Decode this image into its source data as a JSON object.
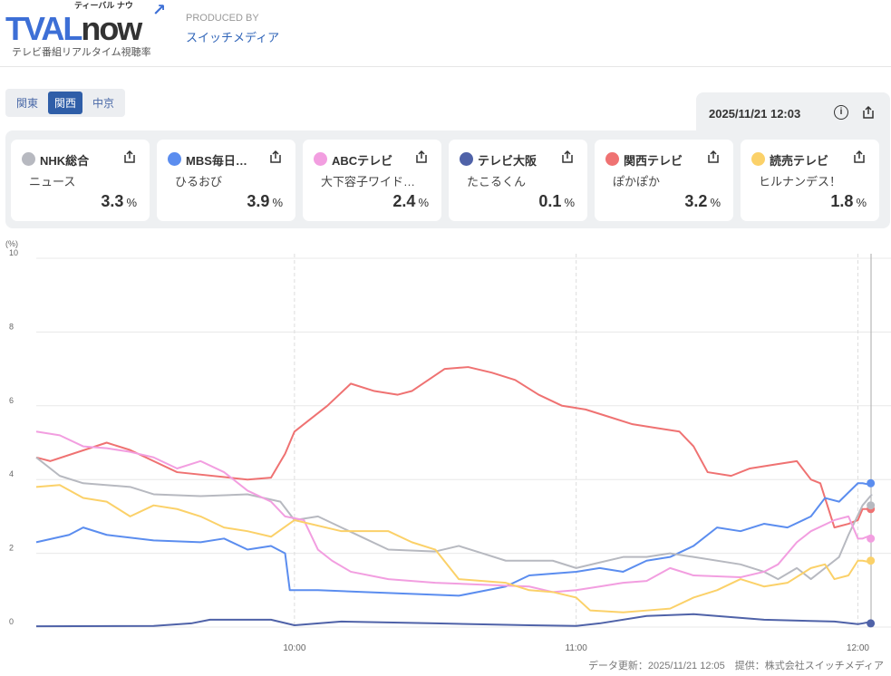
{
  "header": {
    "logo_text": "TVAL",
    "logo_text2": "now",
    "logo_kana": "ティーバル ナウ",
    "logo_sub": "テレビ番組リアルタイム視聴率",
    "produced_by": "PRODUCED BY",
    "producer": "スイッチメディア"
  },
  "regions": [
    {
      "label": "関東",
      "active": false
    },
    {
      "label": "関西",
      "active": true
    },
    {
      "label": "中京",
      "active": false
    }
  ],
  "timestamp": "2025/11/21 12:03",
  "channels": [
    {
      "name": "NHK総合",
      "program": "ニュース",
      "rating": "3.3",
      "unit": "%",
      "color": "#b7b9c0"
    },
    {
      "name": "MBS毎日…",
      "program": "ひるおび",
      "rating": "3.9",
      "unit": "%",
      "color": "#5b8def"
    },
    {
      "name": "ABCテレビ",
      "program": "大下容子ワイド…",
      "rating": "2.4",
      "unit": "%",
      "color": "#f29ee0"
    },
    {
      "name": "テレビ大阪",
      "program": "たこるくん",
      "rating": "0.1",
      "unit": "%",
      "color": "#4f62a8"
    },
    {
      "name": "関西テレビ",
      "program": "ぽかぽか",
      "rating": "3.2",
      "unit": "%",
      "color": "#ef7272"
    },
    {
      "name": "読売テレビ",
      "program": "ヒルナンデス！",
      "rating": "1.8",
      "unit": "%",
      "color": "#fbd169"
    }
  ],
  "chart_data": {
    "type": "line",
    "ylabel": "(%)",
    "ylim": [
      0,
      10
    ],
    "yticks": [
      "0",
      "2",
      "4",
      "6",
      "8",
      "10"
    ],
    "xticks": [
      {
        "label": "10:00",
        "t": "10:00"
      },
      {
        "label": "11:00",
        "t": "11:00"
      },
      {
        "label": "12:00",
        "t": "12:00"
      }
    ],
    "xrange": [
      "9:05",
      "12:03"
    ],
    "series": [
      {
        "name": "関西テレビ",
        "color": "#ef7272",
        "points": [
          [
            "9:05",
            4.6
          ],
          [
            "9:08",
            4.5
          ],
          [
            "9:20",
            5.0
          ],
          [
            "9:25",
            4.8
          ],
          [
            "9:35",
            4.2
          ],
          [
            "9:50",
            4.0
          ],
          [
            "9:55",
            4.05
          ],
          [
            "9:58",
            4.7
          ],
          [
            "10:00",
            5.3
          ],
          [
            "10:03",
            5.6
          ],
          [
            "10:07",
            6.0
          ],
          [
            "10:12",
            6.6
          ],
          [
            "10:17",
            6.4
          ],
          [
            "10:22",
            6.3
          ],
          [
            "10:25",
            6.4
          ],
          [
            "10:32",
            7.0
          ],
          [
            "10:37",
            7.05
          ],
          [
            "10:42",
            6.9
          ],
          [
            "10:47",
            6.7
          ],
          [
            "10:52",
            6.3
          ],
          [
            "10:57",
            6.0
          ],
          [
            "11:02",
            5.9
          ],
          [
            "11:07",
            5.7
          ],
          [
            "11:12",
            5.5
          ],
          [
            "11:17",
            5.4
          ],
          [
            "11:22",
            5.3
          ],
          [
            "11:25",
            4.9
          ],
          [
            "11:28",
            4.2
          ],
          [
            "11:33",
            4.1
          ],
          [
            "11:37",
            4.3
          ],
          [
            "11:42",
            4.4
          ],
          [
            "11:47",
            4.5
          ],
          [
            "11:50",
            4.0
          ],
          [
            "11:52",
            3.9
          ],
          [
            "11:55",
            2.7
          ],
          [
            "11:58",
            2.8
          ],
          [
            "12:00",
            2.9
          ],
          [
            "12:01",
            3.2
          ],
          [
            "12:03",
            3.2
          ]
        ]
      },
      {
        "name": "MBS毎日放送",
        "color": "#5b8def",
        "points": [
          [
            "9:05",
            2.3
          ],
          [
            "9:12",
            2.5
          ],
          [
            "9:15",
            2.7
          ],
          [
            "9:20",
            2.5
          ],
          [
            "9:30",
            2.35
          ],
          [
            "9:40",
            2.3
          ],
          [
            "9:45",
            2.4
          ],
          [
            "9:50",
            2.1
          ],
          [
            "9:55",
            2.2
          ],
          [
            "9:58",
            2.0
          ],
          [
            "9:59",
            1.0
          ],
          [
            "10:05",
            1.0
          ],
          [
            "10:15",
            0.95
          ],
          [
            "10:25",
            0.9
          ],
          [
            "10:35",
            0.85
          ],
          [
            "10:45",
            1.1
          ],
          [
            "10:50",
            1.4
          ],
          [
            "11:00",
            1.5
          ],
          [
            "11:05",
            1.6
          ],
          [
            "11:10",
            1.5
          ],
          [
            "11:15",
            1.8
          ],
          [
            "11:20",
            1.9
          ],
          [
            "11:25",
            2.2
          ],
          [
            "11:30",
            2.7
          ],
          [
            "11:35",
            2.6
          ],
          [
            "11:40",
            2.8
          ],
          [
            "11:45",
            2.7
          ],
          [
            "11:50",
            3.0
          ],
          [
            "11:53",
            3.5
          ],
          [
            "11:56",
            3.4
          ],
          [
            "12:00",
            3.9
          ],
          [
            "12:01",
            3.9
          ],
          [
            "12:03",
            3.85
          ]
        ]
      },
      {
        "name": "NHK総合",
        "color": "#b7b9c0",
        "points": [
          [
            "9:05",
            4.6
          ],
          [
            "9:10",
            4.1
          ],
          [
            "9:15",
            3.9
          ],
          [
            "9:25",
            3.8
          ],
          [
            "9:30",
            3.6
          ],
          [
            "9:40",
            3.55
          ],
          [
            "9:50",
            3.6
          ],
          [
            "9:57",
            3.4
          ],
          [
            "10:00",
            2.9
          ],
          [
            "10:05",
            3.0
          ],
          [
            "10:10",
            2.7
          ],
          [
            "10:15",
            2.4
          ],
          [
            "10:20",
            2.1
          ],
          [
            "10:30",
            2.05
          ],
          [
            "10:35",
            2.2
          ],
          [
            "10:40",
            2.0
          ],
          [
            "10:45",
            1.8
          ],
          [
            "10:55",
            1.8
          ],
          [
            "11:00",
            1.6
          ],
          [
            "11:05",
            1.75
          ],
          [
            "11:10",
            1.9
          ],
          [
            "11:15",
            1.9
          ],
          [
            "11:20",
            2.0
          ],
          [
            "11:25",
            1.9
          ],
          [
            "11:35",
            1.7
          ],
          [
            "11:40",
            1.5
          ],
          [
            "11:43",
            1.3
          ],
          [
            "11:47",
            1.6
          ],
          [
            "11:50",
            1.3
          ],
          [
            "11:53",
            1.6
          ],
          [
            "11:56",
            1.9
          ],
          [
            "11:58",
            2.5
          ],
          [
            "12:01",
            3.3
          ],
          [
            "12:03",
            3.6
          ]
        ]
      },
      {
        "name": "ABCテレビ",
        "color": "#f29ee0",
        "points": [
          [
            "9:05",
            5.3
          ],
          [
            "9:10",
            5.2
          ],
          [
            "9:15",
            4.9
          ],
          [
            "9:20",
            4.85
          ],
          [
            "9:25",
            4.75
          ],
          [
            "9:30",
            4.6
          ],
          [
            "9:35",
            4.3
          ],
          [
            "9:40",
            4.5
          ],
          [
            "9:45",
            4.2
          ],
          [
            "9:50",
            3.7
          ],
          [
            "9:55",
            3.4
          ],
          [
            "9:58",
            3.0
          ],
          [
            "10:02",
            2.9
          ],
          [
            "10:05",
            2.1
          ],
          [
            "10:08",
            1.8
          ],
          [
            "10:12",
            1.5
          ],
          [
            "10:20",
            1.3
          ],
          [
            "10:30",
            1.2
          ],
          [
            "10:40",
            1.15
          ],
          [
            "10:50",
            1.1
          ],
          [
            "10:55",
            0.95
          ],
          [
            "11:00",
            1.0
          ],
          [
            "11:05",
            1.1
          ],
          [
            "11:10",
            1.2
          ],
          [
            "11:15",
            1.25
          ],
          [
            "11:20",
            1.6
          ],
          [
            "11:25",
            1.4
          ],
          [
            "11:35",
            1.35
          ],
          [
            "11:40",
            1.5
          ],
          [
            "11:43",
            1.7
          ],
          [
            "11:47",
            2.3
          ],
          [
            "11:50",
            2.6
          ],
          [
            "11:55",
            2.9
          ],
          [
            "11:58",
            3.0
          ],
          [
            "12:00",
            2.4
          ],
          [
            "12:01",
            2.4
          ],
          [
            "12:03",
            2.5
          ]
        ]
      },
      {
        "name": "テレビ大阪",
        "color": "#4f62a8",
        "points": [
          [
            "9:05",
            0.02
          ],
          [
            "9:30",
            0.03
          ],
          [
            "9:38",
            0.1
          ],
          [
            "9:42",
            0.2
          ],
          [
            "9:55",
            0.2
          ],
          [
            "10:00",
            0.05
          ],
          [
            "10:10",
            0.15
          ],
          [
            "10:30",
            0.1
          ],
          [
            "10:50",
            0.05
          ],
          [
            "11:00",
            0.03
          ],
          [
            "11:05",
            0.1
          ],
          [
            "11:15",
            0.3
          ],
          [
            "11:25",
            0.35
          ],
          [
            "11:40",
            0.2
          ],
          [
            "11:55",
            0.15
          ],
          [
            "12:00",
            0.08
          ],
          [
            "12:01",
            0.1
          ],
          [
            "12:03",
            0.15
          ]
        ]
      },
      {
        "name": "読売テレビ",
        "color": "#fbd169",
        "points": [
          [
            "9:05",
            3.8
          ],
          [
            "9:10",
            3.85
          ],
          [
            "9:15",
            3.5
          ],
          [
            "9:20",
            3.4
          ],
          [
            "9:25",
            3.0
          ],
          [
            "9:30",
            3.3
          ],
          [
            "9:35",
            3.2
          ],
          [
            "9:40",
            3.0
          ],
          [
            "9:45",
            2.7
          ],
          [
            "9:50",
            2.6
          ],
          [
            "9:55",
            2.45
          ],
          [
            "10:00",
            2.9
          ],
          [
            "10:10",
            2.6
          ],
          [
            "10:20",
            2.6
          ],
          [
            "10:25",
            2.3
          ],
          [
            "10:30",
            2.1
          ],
          [
            "10:35",
            1.3
          ],
          [
            "10:45",
            1.2
          ],
          [
            "10:50",
            1.0
          ],
          [
            "10:55",
            0.95
          ],
          [
            "11:00",
            0.8
          ],
          [
            "11:03",
            0.45
          ],
          [
            "11:10",
            0.4
          ],
          [
            "11:15",
            0.45
          ],
          [
            "11:20",
            0.5
          ],
          [
            "11:25",
            0.8
          ],
          [
            "11:30",
            1.0
          ],
          [
            "11:35",
            1.3
          ],
          [
            "11:40",
            1.1
          ],
          [
            "11:45",
            1.2
          ],
          [
            "11:50",
            1.6
          ],
          [
            "11:53",
            1.7
          ],
          [
            "11:55",
            1.3
          ],
          [
            "11:58",
            1.4
          ],
          [
            "12:00",
            1.8
          ],
          [
            "12:01",
            1.8
          ],
          [
            "12:03",
            1.75
          ]
        ]
      }
    ]
  },
  "footer": "データ更新：2025/11/21 12:05　提供：株式会社スイッチメディア"
}
